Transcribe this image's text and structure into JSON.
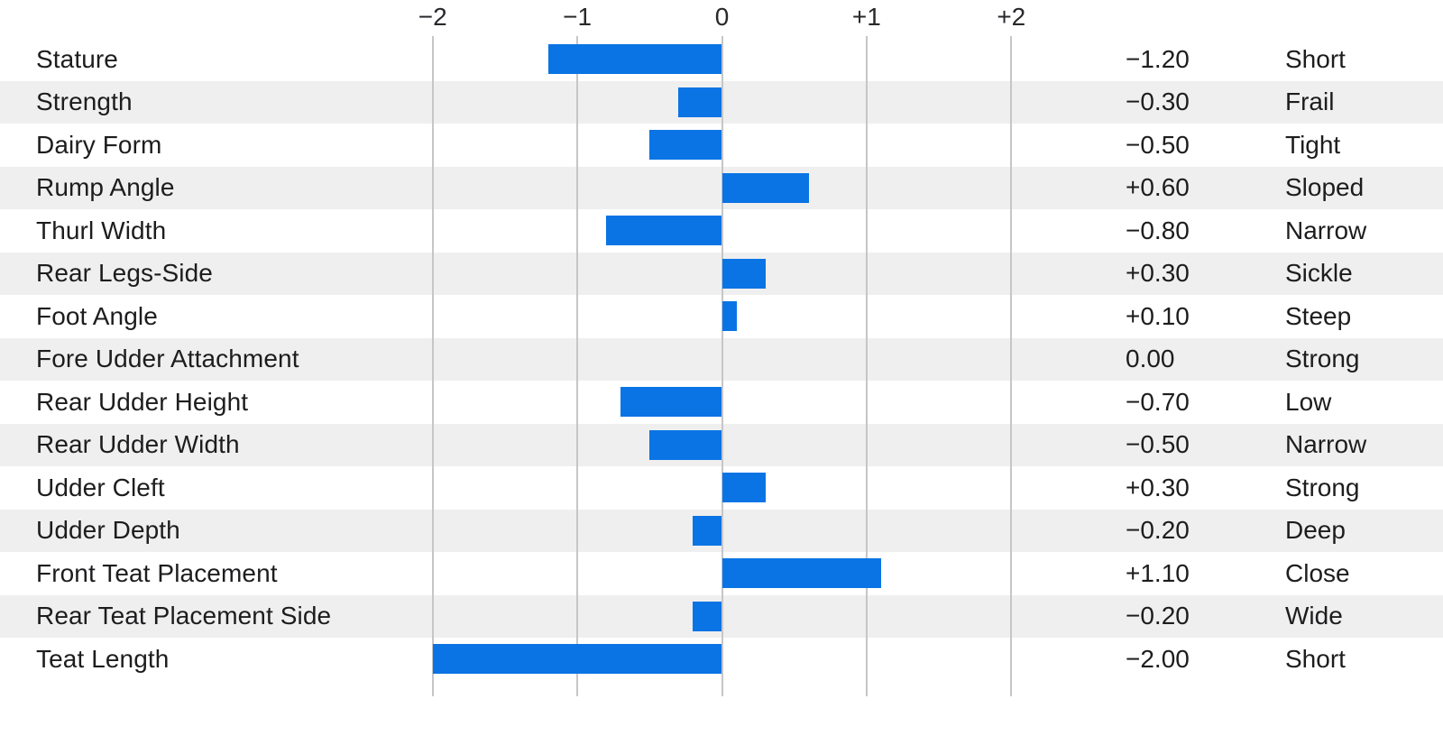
{
  "chart_data": {
    "type": "bar",
    "orientation": "horizontal",
    "title": "",
    "xlabel": "",
    "ylabel": "",
    "axis_range": [
      -2,
      2
    ],
    "grid": true,
    "legend": "none",
    "bar_color": "#0a74e4",
    "ticks": [
      {
        "label": "−2",
        "value": -2
      },
      {
        "label": "−1",
        "value": -1
      },
      {
        "label": "0",
        "value": 0
      },
      {
        "label": "+1",
        "value": 1
      },
      {
        "label": "+2",
        "value": 2
      }
    ],
    "rows": [
      {
        "trait": "Stature",
        "value": -1.2,
        "value_label": "−1.20",
        "descriptor": "Short"
      },
      {
        "trait": "Strength",
        "value": -0.3,
        "value_label": "−0.30",
        "descriptor": "Frail"
      },
      {
        "trait": "Dairy Form",
        "value": -0.5,
        "value_label": "−0.50",
        "descriptor": "Tight"
      },
      {
        "trait": "Rump Angle",
        "value": 0.6,
        "value_label": "+0.60",
        "descriptor": "Sloped"
      },
      {
        "trait": "Thurl Width",
        "value": -0.8,
        "value_label": "−0.80",
        "descriptor": "Narrow"
      },
      {
        "trait": "Rear Legs-Side",
        "value": 0.3,
        "value_label": "+0.30",
        "descriptor": "Sickle"
      },
      {
        "trait": "Foot Angle",
        "value": 0.1,
        "value_label": "+0.10",
        "descriptor": "Steep"
      },
      {
        "trait": "Fore Udder Attachment",
        "value": 0.0,
        "value_label": "0.00",
        "descriptor": "Strong"
      },
      {
        "trait": "Rear Udder Height",
        "value": -0.7,
        "value_label": "−0.70",
        "descriptor": "Low"
      },
      {
        "trait": "Rear Udder Width",
        "value": -0.5,
        "value_label": "−0.50",
        "descriptor": "Narrow"
      },
      {
        "trait": "Udder Cleft",
        "value": 0.3,
        "value_label": "+0.30",
        "descriptor": "Strong"
      },
      {
        "trait": "Udder Depth",
        "value": -0.2,
        "value_label": "−0.20",
        "descriptor": "Deep"
      },
      {
        "trait": "Front Teat Placement",
        "value": 1.1,
        "value_label": "+1.10",
        "descriptor": "Close"
      },
      {
        "trait": "Rear Teat Placement Side",
        "value": -0.2,
        "value_label": "−0.20",
        "descriptor": "Wide"
      },
      {
        "trait": "Teat Length",
        "value": -2.0,
        "value_label": "−2.00",
        "descriptor": "Short"
      }
    ]
  },
  "colors": {
    "bar": "#0a74e4",
    "row_stripe": "#efefef",
    "gridline": "#c6c6c8",
    "text": "#1d1d1f"
  }
}
